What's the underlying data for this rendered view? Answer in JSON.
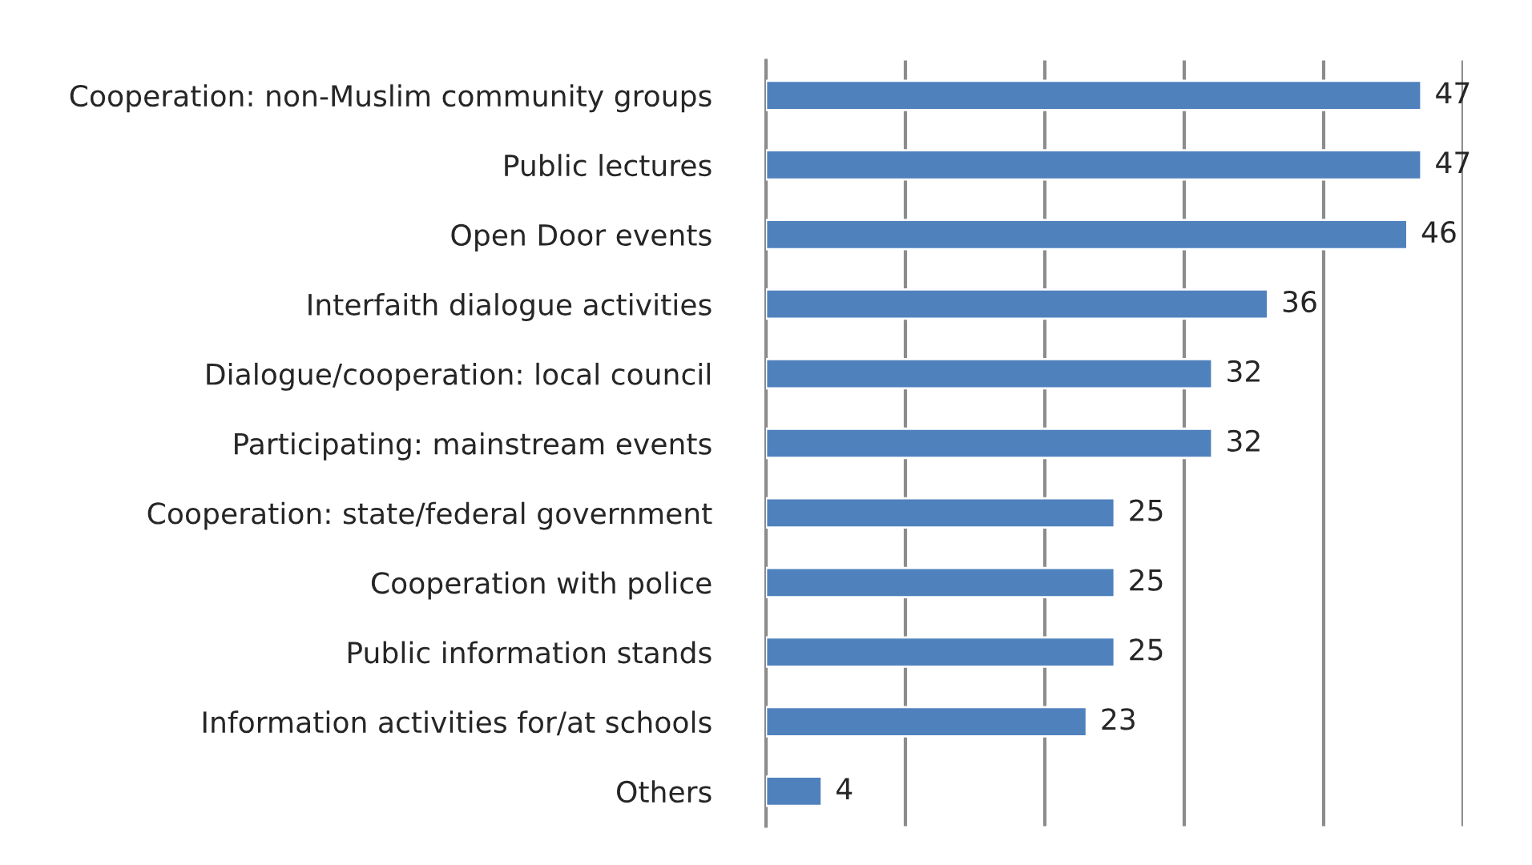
{
  "chart_data": {
    "type": "bar",
    "orientation": "horizontal",
    "categories": [
      "Cooperation: non-Muslim community groups",
      "Public lectures",
      "Open Door events",
      "Interfaith dialogue activities",
      "Dialogue/cooperation: local council",
      "Participating: mainstream events",
      "Cooperation: state/federal government",
      "Cooperation with police",
      "Public information stands",
      "Information activities for/at schools",
      "Others"
    ],
    "values": [
      47,
      47,
      46,
      36,
      32,
      32,
      25,
      25,
      25,
      23,
      4
    ],
    "color": "#4f81bd",
    "xlim": [
      0,
      50
    ],
    "xticks": [
      {
        "value": 0,
        "label": null
      },
      {
        "value": 10,
        "label": null
      },
      {
        "value": 20,
        "label": null
      },
      {
        "value": 30,
        "label": null
      },
      {
        "value": 40,
        "label": null
      },
      {
        "value": 50,
        "label": null
      }
    ],
    "tick_labels": "y",
    "grid": "x",
    "data_labels": true,
    "legend": false
  }
}
